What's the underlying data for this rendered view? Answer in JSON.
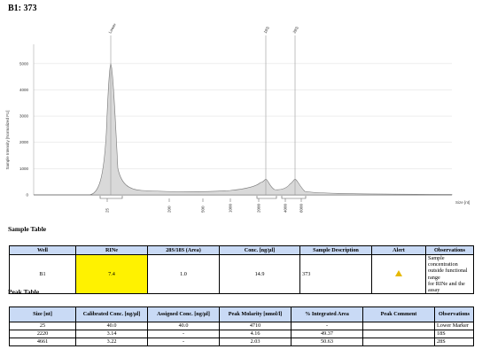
{
  "title": "B1: 373",
  "chart_data": {
    "type": "line",
    "ylabel": "Sample Intensity [Normalized FU]",
    "xlabel": "Size [nt]",
    "x_ticks": [
      "25",
      "200",
      "500",
      "1000",
      "2000",
      "4000",
      "6000"
    ],
    "y_ticks": [
      "0",
      "1000",
      "2000",
      "3000",
      "4000",
      "5000"
    ],
    "ylim": [
      0,
      5600
    ],
    "peak_labels": [
      "Lower",
      "18S",
      "28S"
    ],
    "grid": true,
    "series": [
      {
        "x": [
          "25",
          "200",
          "500",
          "1000",
          "2000",
          "2220",
          "4000",
          "4661",
          "6000"
        ],
        "values": [
          5000,
          50,
          70,
          110,
          200,
          600,
          250,
          600,
          30
        ]
      }
    ]
  },
  "sample_table": {
    "title": "Sample Table",
    "headers": [
      "Well",
      "RINe",
      "28S/18S (Area)",
      "Conc. [ng/µl]",
      "Sample Description",
      "Alert",
      "Observations"
    ],
    "row": {
      "well": "B1",
      "rine": "7.4",
      "ratio": "1.0",
      "conc": "14.9",
      "description": "373",
      "alert_icon": "warning-icon",
      "observations_1": "Sample concentration",
      "observations_2": "outside functional range",
      "observations_3": "for RINe and the assay"
    }
  },
  "peak_table": {
    "title": "Peak Table",
    "headers": [
      "Size [nt]",
      "Calibrated Conc. [ng/µl]",
      "Assigned Conc. [ng/µl]",
      "Peak Molarity [nmol/l]",
      "% Integrated Area",
      "Peak Comment",
      "Observations"
    ],
    "rows": [
      [
        "25",
        "40.0",
        "40.0",
        "4710",
        "-",
        "",
        "Lower Marker"
      ],
      [
        "2220",
        "3.14",
        "-",
        "4.16",
        "49.37",
        "",
        "18S"
      ],
      [
        "4661",
        "3.22",
        "-",
        "2.03",
        "50.63",
        "",
        "28S"
      ]
    ]
  },
  "colors": {
    "header_bg": "#c9daf5",
    "rin_highlight": "#fff200",
    "alert": "#e6b800",
    "trace_fill": "#d9d9d9"
  }
}
